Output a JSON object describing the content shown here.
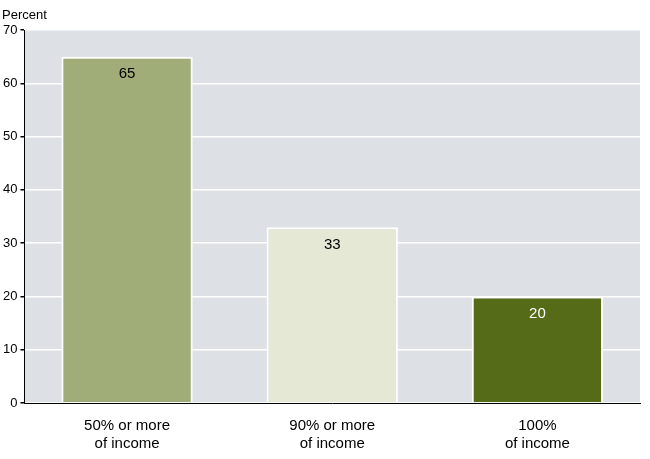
{
  "chart_data": {
    "type": "bar",
    "ylabel": "Percent",
    "categories": [
      "50% or more of income",
      "90% or more of income",
      "100% of income"
    ],
    "values": [
      65,
      33,
      20
    ],
    "colors": [
      "#a0ad78",
      "#e4e8d5",
      "#556b17"
    ],
    "ylim": [
      0,
      70
    ],
    "yticks": [
      0,
      10,
      20,
      30,
      40,
      50,
      60,
      70
    ],
    "grid": true,
    "data_labels": true
  }
}
